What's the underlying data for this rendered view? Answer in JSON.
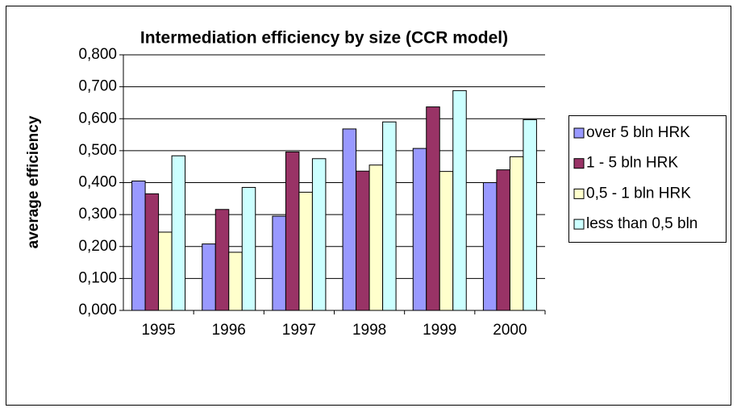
{
  "chart_data": {
    "type": "bar",
    "title": "Intermediation efficiency by size (CCR model)",
    "y_label": "average efficiency",
    "categories": [
      "1995",
      "1996",
      "1997",
      "1998",
      "1999",
      "2000"
    ],
    "series": [
      {
        "name": "over 5 bln HRK",
        "color": "#9999ff",
        "values": [
          0.405,
          0.208,
          0.295,
          0.568,
          0.507,
          0.4
        ]
      },
      {
        "name": "1 - 5 bln HRK",
        "color": "#993366",
        "values": [
          0.365,
          0.316,
          0.496,
          0.436,
          0.637,
          0.44
        ]
      },
      {
        "name": "0,5 - 1 bln HRK",
        "color": "#ffffcc",
        "values": [
          0.245,
          0.182,
          0.37,
          0.455,
          0.435,
          0.481
        ]
      },
      {
        "name": "less than 0,5 bln",
        "color": "#ccffff",
        "values": [
          0.484,
          0.385,
          0.475,
          0.59,
          0.688,
          0.597
        ]
      }
    ],
    "ylim": [
      0,
      0.8
    ],
    "yticks": [
      {
        "value": 0,
        "label": "0,000"
      },
      {
        "value": 0.1,
        "label": "0,100"
      },
      {
        "value": 0.2,
        "label": "0,200"
      },
      {
        "value": 0.3,
        "label": "0,300"
      },
      {
        "value": 0.4,
        "label": "0,400"
      },
      {
        "value": 0.5,
        "label": "0,500"
      },
      {
        "value": 0.6,
        "label": "0,600"
      },
      {
        "value": 0.7,
        "label": "0,700"
      },
      {
        "value": 0.8,
        "label": "0,800"
      }
    ],
    "grid": true,
    "legend": "right"
  }
}
